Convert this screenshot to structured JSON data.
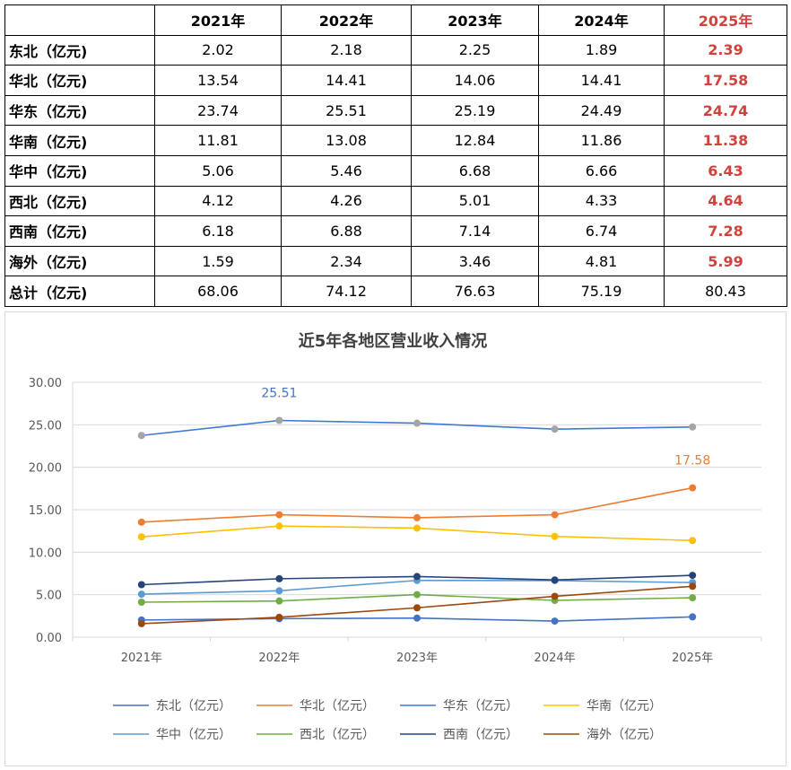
{
  "table": {
    "columns": [
      "",
      "2021年",
      "2022年",
      "2023年",
      "2024年",
      "2025年"
    ],
    "highlight_color": "#d2423c",
    "rows": [
      {
        "label": "东北（亿元)",
        "values": [
          "2.02",
          "2.18",
          "2.25",
          "1.89",
          "2.39"
        ]
      },
      {
        "label": "华北（亿元)",
        "values": [
          "13.54",
          "14.41",
          "14.06",
          "14.41",
          "17.58"
        ]
      },
      {
        "label": "华东（亿元)",
        "values": [
          "23.74",
          "25.51",
          "25.19",
          "24.49",
          "24.74"
        ]
      },
      {
        "label": "华南（亿元)",
        "values": [
          "11.81",
          "13.08",
          "12.84",
          "11.86",
          "11.38"
        ]
      },
      {
        "label": "华中（亿元)",
        "values": [
          "5.06",
          "5.46",
          "6.68",
          "6.66",
          "6.43"
        ]
      },
      {
        "label": "西北（亿元)",
        "values": [
          "4.12",
          "4.26",
          "5.01",
          "4.33",
          "4.64"
        ]
      },
      {
        "label": "西南（亿元)",
        "values": [
          "6.18",
          "6.88",
          "7.14",
          "6.74",
          "7.28"
        ]
      },
      {
        "label": "海外（亿元)",
        "values": [
          "1.59",
          "2.34",
          "3.46",
          "4.81",
          "5.99"
        ]
      },
      {
        "label": "总计（亿元)",
        "values": [
          "68.06",
          "74.12",
          "76.63",
          "75.19",
          "80.43"
        ]
      }
    ]
  },
  "chart_data": {
    "type": "line",
    "title": "近5年各地区营业收入情况",
    "categories": [
      "2021年",
      "2022年",
      "2023年",
      "2024年",
      "2025年"
    ],
    "ylim": [
      0,
      30
    ],
    "yticks": [
      "0.00",
      "5.00",
      "10.00",
      "15.00",
      "20.00",
      "25.00",
      "30.00"
    ],
    "grid": true,
    "legend_position": "bottom",
    "series": [
      {
        "name": "东北（亿元）",
        "color": "#4472c4",
        "values": [
          2.02,
          2.18,
          2.25,
          1.89,
          2.39
        ]
      },
      {
        "name": "华北（亿元）",
        "color": "#ed7d31",
        "values": [
          13.54,
          14.41,
          14.06,
          14.41,
          17.58
        ]
      },
      {
        "name": "华东（亿元）",
        "color": "#3d78d8",
        "values": [
          23.74,
          25.51,
          25.19,
          24.49,
          24.74
        ],
        "marker_color": "#a5a5a5"
      },
      {
        "name": "华南（亿元）",
        "color": "#ffc000",
        "values": [
          11.81,
          13.08,
          12.84,
          11.86,
          11.38
        ]
      },
      {
        "name": "华中（亿元）",
        "color": "#5b9bd5",
        "values": [
          5.06,
          5.46,
          6.68,
          6.66,
          6.43
        ]
      },
      {
        "name": "西北（亿元）",
        "color": "#70ad47",
        "values": [
          4.12,
          4.26,
          5.01,
          4.33,
          4.64
        ]
      },
      {
        "name": "西南（亿元）",
        "color": "#264478",
        "values": [
          6.18,
          6.88,
          7.14,
          6.74,
          7.28
        ]
      },
      {
        "name": "海外（亿元）",
        "color": "#9e480e",
        "values": [
          1.59,
          2.34,
          3.46,
          4.81,
          5.99
        ]
      }
    ],
    "annotations": [
      {
        "series": 2,
        "point": 1,
        "text": "25.51",
        "color": "#4472c4"
      },
      {
        "series": 1,
        "point": 4,
        "text": "17.58",
        "color": "#ed7d31"
      }
    ]
  }
}
